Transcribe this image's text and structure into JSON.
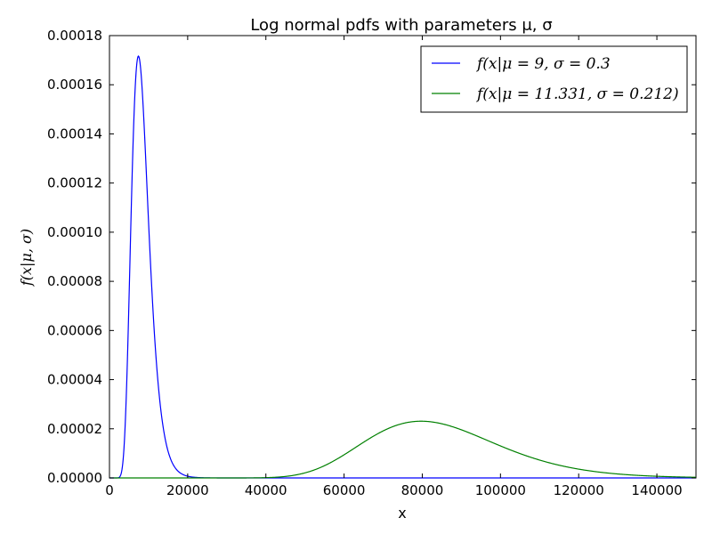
{
  "chart_data": {
    "type": "line",
    "title": "Log normal pdfs with parameters μ, σ",
    "xlabel": "x",
    "ylabel": "f(x|μ, σ)",
    "xlim": [
      0,
      150000
    ],
    "ylim": [
      0,
      0.00018
    ],
    "x_ticks": [
      "0",
      "20000",
      "40000",
      "60000",
      "80000",
      "100000",
      "120000",
      "140000"
    ],
    "y_ticks": [
      "0.00000",
      "0.00002",
      "0.00004",
      "0.00006",
      "0.00008",
      "0.00010",
      "0.00012",
      "0.00014",
      "0.00016",
      "0.00018"
    ],
    "grid": false,
    "legend_position": "top-right",
    "series": [
      {
        "name": "f(x|μ = 9, σ = 0.3",
        "mu": 9,
        "sigma": 0.3,
        "color": "#0000ff"
      },
      {
        "name": "f(x|μ = 11.331, σ = 0.212)",
        "mu": 11.331,
        "sigma": 0.212,
        "color": "#008000"
      }
    ]
  }
}
